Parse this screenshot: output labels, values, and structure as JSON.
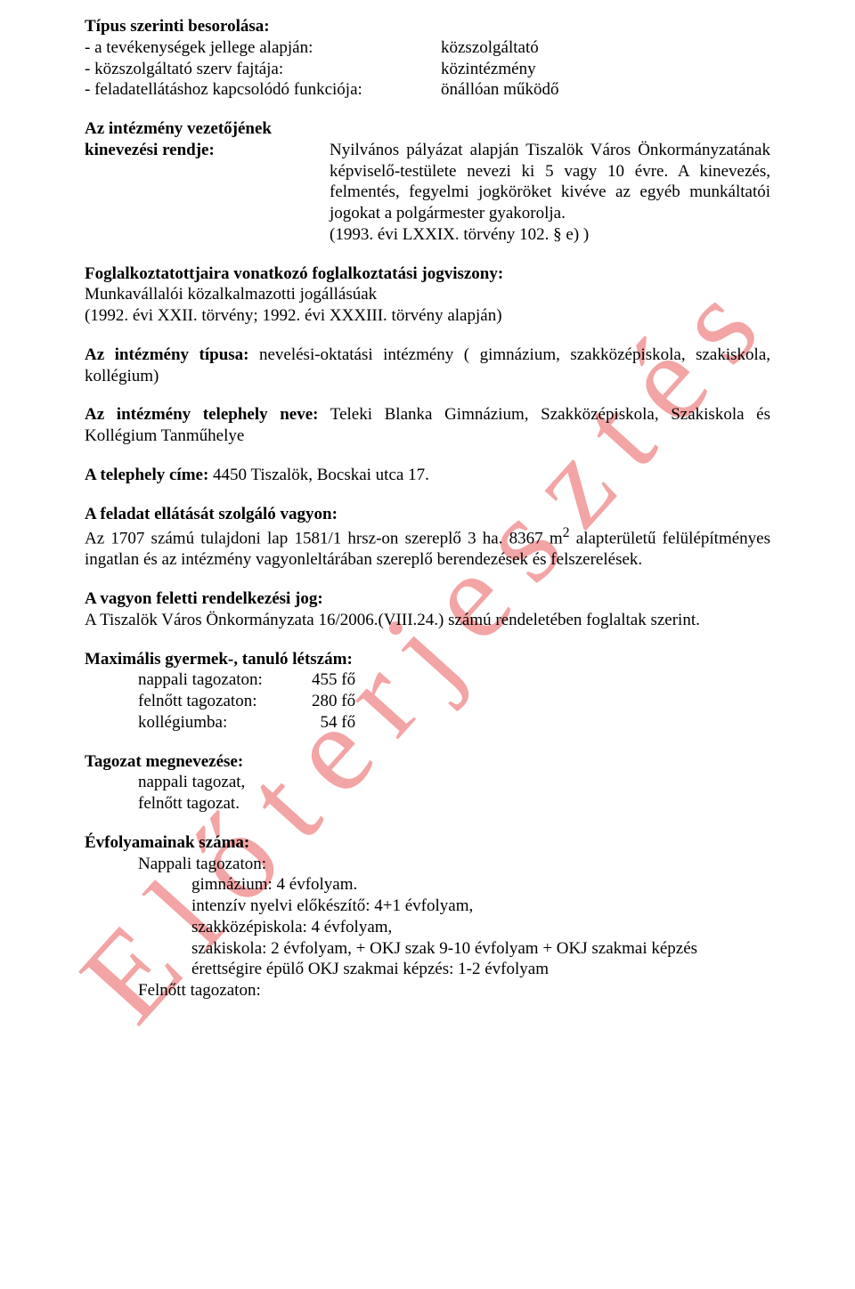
{
  "watermark": "Előterjesztés",
  "s1": {
    "title": "Típus szerinti besorolása:",
    "rows": [
      {
        "label": "- a tevékenységek jellege alapján:",
        "value": "közszolgáltató"
      },
      {
        "label": "- közszolgáltató szerv fajtája:",
        "value": "közintézmény"
      },
      {
        "label": "- feladatellátáshoz kapcsolódó funkciója:",
        "value": "önállóan működő"
      }
    ]
  },
  "s2": {
    "title": "Az intézmény vezetőjének",
    "label": "kinevezési rendje:",
    "body": "Nyilvános pályázat alapján Tiszalök Város Önkormányzatának képviselő-testülete nevezi ki 5 vagy 10 évre. A kinevezés, felmentés, fegyelmi jogköröket kivéve az egyéb munkáltatói jogokat a polgármester gyakorolja.",
    "law": "(1993. évi LXXIX. törvény 102. § e) )"
  },
  "s3": {
    "title": "Foglalkoztatottjaira vonatkozó foglalkoztatási jogviszony:",
    "line1": "Munkavállalói közalkalmazotti jogállásúak",
    "line2": "(1992. évi XXII. törvény; 1992. évi XXXIII. törvény alapján)"
  },
  "s4": {
    "label": "Az intézmény típusa:",
    "text": " nevelési-oktatási intézmény ( gimnázium, szakközépiskola, szakiskola, kollégium)"
  },
  "s5": {
    "label": "Az intézmény telephely neve:",
    "text": " Teleki Blanka Gimnázium, Szakközépiskola, Szakiskola és Kollégium Tanműhelye"
  },
  "s6": {
    "label": "A telephely címe:",
    "text": " 4450 Tiszalök, Bocskai utca 17."
  },
  "s7": {
    "title": "A feladat ellátását szolgáló vagyon:",
    "text_a": "Az 1707 számú tulajdoni lap 1581/1 hrsz-on szereplő 3 ha. 8367 m",
    "sup": "2",
    "text_b": " alapterületű felülépítményes ingatlan és az intézmény vagyonleltárában szereplő berendezések és felszerelések."
  },
  "s8": {
    "title": "A vagyon feletti rendelkezési jog:",
    "text": "A Tiszalök Város Önkormányzata 16/2006.(VIII.24.) számú rendeletében foglaltak szerint."
  },
  "s9": {
    "title": "Maximális gyermek-, tanuló létszám:",
    "rows": [
      {
        "label": "nappali tagozaton:",
        "value": "455 fő"
      },
      {
        "label": "felnőtt tagozaton:",
        "value": "280 fő"
      },
      {
        "label": "kollégiumba:",
        "value": "  54 fő"
      }
    ]
  },
  "s10": {
    "title": "Tagozat megnevezése:",
    "lines": [
      "nappali tagozat,",
      "felnőtt tagozat."
    ]
  },
  "s11": {
    "title": "Évfolyamainak száma:",
    "group1_label": "Nappali tagozaton:",
    "group1_items": [
      "gimnázium: 4 évfolyam.",
      "intenzív nyelvi előkészítő: 4+1 évfolyam,",
      "szakközépiskola: 4 évfolyam,",
      "szakiskola: 2 évfolyam, + OKJ szak 9-10 évfolyam + OKJ szakmai képzés",
      "érettségire épülő OKJ szakmai képzés: 1-2 évfolyam"
    ],
    "group2_label": "Felnőtt tagozaton:"
  }
}
